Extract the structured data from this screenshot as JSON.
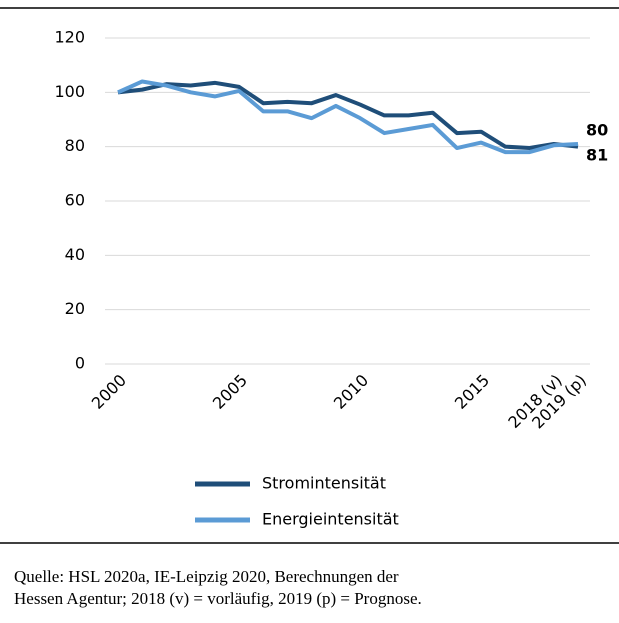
{
  "chart_data": {
    "type": "line",
    "categories": [
      "2000",
      null,
      null,
      null,
      null,
      "2005",
      null,
      null,
      null,
      null,
      "2010",
      null,
      null,
      null,
      null,
      "2015",
      null,
      null,
      "2018 (v)",
      "2019 (p)"
    ],
    "series": [
      {
        "name": "Stromintensität",
        "color": "#1f4e79",
        "label_color": "#1f3c88",
        "values": [
          100,
          101,
          103,
          102.5,
          103.5,
          102,
          96,
          96.5,
          96,
          99,
          95.5,
          91.5,
          91.5,
          92.5,
          85,
          85.5,
          80,
          79.5,
          81,
          80
        ]
      },
      {
        "name": "Energieintensität",
        "color": "#5b9bd5",
        "label_color": "#5b9bd5",
        "values": [
          100,
          104,
          102.5,
          100,
          98.5,
          100.5,
          93,
          93,
          90.5,
          95,
          90.5,
          85,
          86.5,
          88,
          79.5,
          81.5,
          78,
          78,
          80.5,
          81
        ]
      }
    ],
    "ylim": [
      0,
      120
    ],
    "yticks": [
      0,
      20,
      40,
      60,
      80,
      100,
      120
    ],
    "grid": true,
    "legend": "bottom",
    "note": [
      "Quelle: HSL 2020a, IE-Leipzig 2020, Berechnungen der",
      "Hessen Agentur; 2018 (v) = vorläufig, 2019 (p) = Prognose."
    ]
  }
}
